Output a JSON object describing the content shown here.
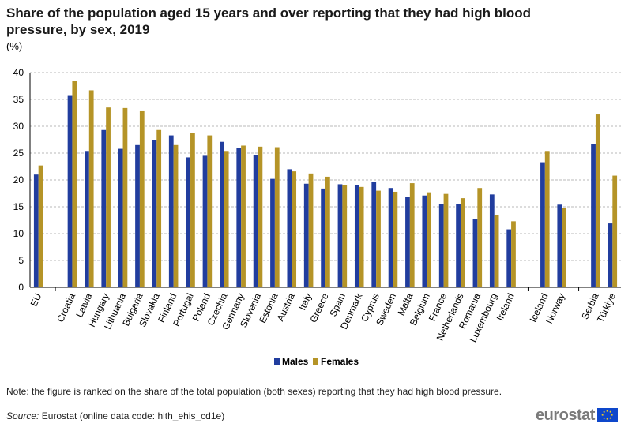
{
  "title": "Share of the population aged 15 years and over reporting that they had high blood pressure, by sex, 2019",
  "unit": "(%)",
  "note": "Note: the figure is ranked on the share of the total population (both sexes) reporting that they had high blood pressure.",
  "source_label": "Source:",
  "source_text": "Eurostat (online data code: hlth_ehis_cd1e)",
  "logo_text": "eurostat",
  "colors": {
    "males": "#213d9e",
    "females": "#b59427",
    "grid": "#b8b8b8",
    "axis": "#000000"
  },
  "chart_data": {
    "type": "bar",
    "title": "Share of the population aged 15 years and over reporting that they had high blood pressure, by sex, 2019",
    "ylabel": "(%)",
    "xlabel": "",
    "ylim": [
      0,
      40
    ],
    "yticks": [
      0,
      5,
      10,
      15,
      20,
      25,
      30,
      35,
      40
    ],
    "grid": true,
    "legend": "bottom-center",
    "categories": [
      "EU",
      "Croatia",
      "Latvia",
      "Hungary",
      "Lithuania",
      "Bulgaria",
      "Slovakia",
      "Finland",
      "Portugal",
      "Poland",
      "Czechia",
      "Germany",
      "Slovenia",
      "Estonia",
      "Austria",
      "Italy",
      "Greece",
      "Spain",
      "Denmark",
      "Cyprus",
      "Sweden",
      "Malta",
      "Belgium",
      "France",
      "Netherlands",
      "Romania",
      "Luxembourg",
      "Ireland",
      "Iceland",
      "Norway",
      "Serbia",
      "Türkiye"
    ],
    "groups": [
      [
        0
      ],
      [
        1,
        27
      ],
      [
        28,
        29
      ],
      [
        30,
        31
      ]
    ],
    "series": [
      {
        "name": "Males",
        "values": [
          21.0,
          35.8,
          25.4,
          29.3,
          25.8,
          26.5,
          27.5,
          28.3,
          24.2,
          24.5,
          27.1,
          26.0,
          24.6,
          20.2,
          22.0,
          19.3,
          18.4,
          19.2,
          19.1,
          19.7,
          18.5,
          16.8,
          17.1,
          15.5,
          15.5,
          12.7,
          17.3,
          10.8,
          23.3,
          15.4,
          26.7,
          11.9
        ]
      },
      {
        "name": "Females",
        "values": [
          22.7,
          38.4,
          36.7,
          33.5,
          33.4,
          32.8,
          29.3,
          26.5,
          28.7,
          28.3,
          25.4,
          26.4,
          26.2,
          26.1,
          21.6,
          21.2,
          20.6,
          19.1,
          18.7,
          18.0,
          17.8,
          19.4,
          17.7,
          17.4,
          16.6,
          18.5,
          13.4,
          12.3,
          25.4,
          14.8,
          32.2,
          20.8
        ]
      }
    ]
  }
}
